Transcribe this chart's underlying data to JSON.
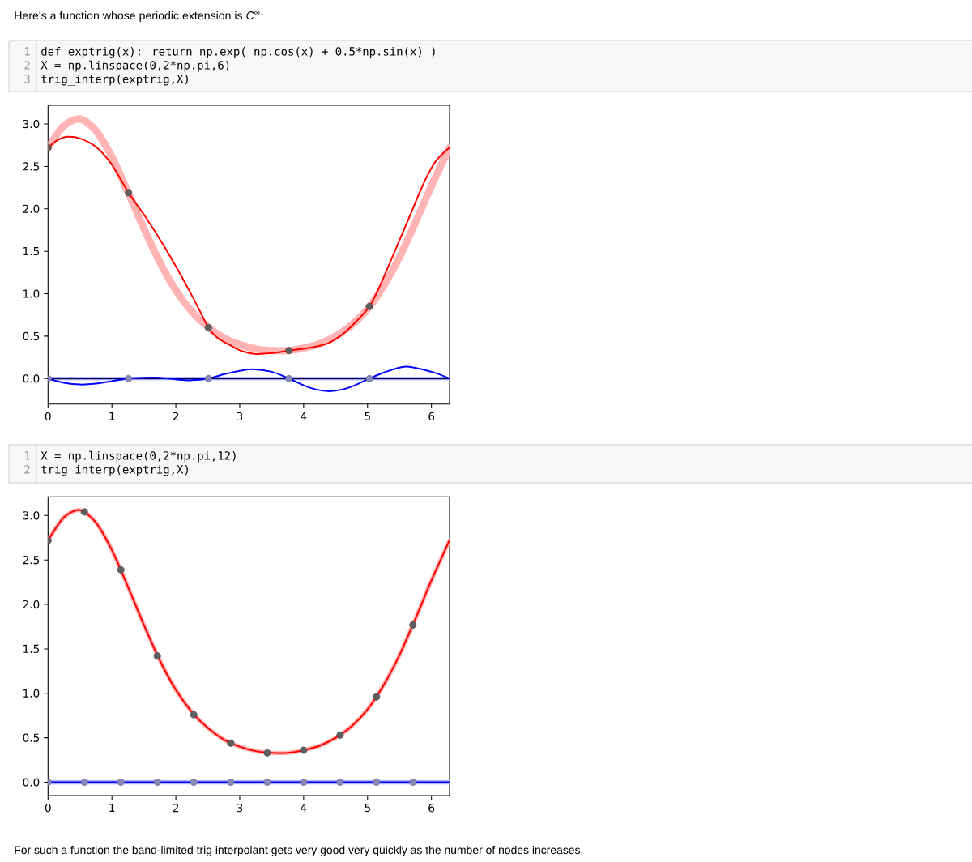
{
  "chart_data": [
    {
      "type": "line",
      "title": "Here's a function whose periodic extension is *C*$^{∞}$:",
      "annotations": [
        "1",
        "def exptrig(x): return np.exp( np.cos(x) + 0.5*np.sin(x) )",
        "2",
        "X = np.linspace(0,2*np.pi,6)",
        "3",
        "trig_interp(exptrig,X)"
      ],
      "x": [
        0,
        0.25,
        0.5,
        0.75,
        1,
        1.25,
        1.5,
        1.75,
        2,
        2.25,
        2.5,
        2.75,
        3,
        3.25,
        3.5,
        3.75,
        4,
        4.25,
        4.5,
        4.75,
        5,
        5.25,
        5.5,
        5.75,
        6,
        6.25,
        6.2832
      ],
      "xlim": [
        0,
        6.2832
      ],
      "xticks": [
        0,
        1,
        2,
        3,
        4,
        5,
        6
      ],
      "ylim": [
        -0.3,
        3.22
      ],
      "yticks": [
        {
          "value": 0,
          "label": "0.0"
        },
        {
          "value": 0.5,
          "label": "0.5"
        },
        {
          "value": 1,
          "label": "1.0"
        },
        {
          "value": 1.5,
          "label": "1.5"
        },
        {
          "value": 2,
          "label": "2.0"
        },
        {
          "value": 2.5,
          "label": "2.5"
        },
        {
          "value": 3,
          "label": "3.0"
        }
      ],
      "ref_lines": [
        {
          "axis": "y",
          "value": 0,
          "color": "#00004d"
        }
      ],
      "series": [
        {
          "color": "#ffb3b3",
          "values": [
            2.72,
            2.98,
            3.06,
            2.92,
            2.61,
            2.2,
            1.77,
            1.37,
            1.04,
            0.79,
            0.61,
            0.48,
            0.4,
            0.35,
            0.33,
            0.33,
            0.36,
            0.41,
            0.5,
            0.63,
            0.82,
            1.09,
            1.43,
            1.84,
            2.27,
            2.67,
            2.72
          ]
        },
        {
          "color": "#b3b3ff",
          "x": [
            0,
            6.2832
          ],
          "values": [
            0,
            0
          ]
        },
        {
          "color": "#ff0000",
          "x": [
            0,
            0.15,
            0.3,
            0.5,
            0.75,
            1,
            1.26,
            1.53,
            1.8,
            2.04,
            2.25,
            2.38,
            2.51,
            2.65,
            2.88,
            3.05,
            3.25,
            3.5,
            3.77,
            4.07,
            4.36,
            4.57,
            4.78,
            5.03,
            5.21,
            5.5,
            5.68,
            5.86,
            6.03,
            6.16,
            6.2832
          ],
          "values": [
            2.72,
            2.81,
            2.85,
            2.83,
            2.73,
            2.52,
            2.19,
            1.9,
            1.58,
            1.27,
            0.98,
            0.79,
            0.6,
            0.48,
            0.38,
            0.32,
            0.29,
            0.3,
            0.33,
            0.36,
            0.41,
            0.5,
            0.64,
            0.85,
            1.12,
            1.63,
            1.95,
            2.27,
            2.52,
            2.64,
            2.72
          ]
        },
        {
          "color": "#0000ff",
          "x": [
            0,
            0.25,
            0.5,
            0.75,
            1,
            1.26,
            1.5,
            1.75,
            2,
            2.25,
            2.51,
            2.75,
            3,
            3.2,
            3.5,
            3.77,
            4,
            4.2,
            4.4,
            4.6,
            4.8,
            5.03,
            5.25,
            5.6,
            6,
            6.2832
          ],
          "values": [
            0,
            -0.05,
            -0.07,
            -0.06,
            -0.03,
            0,
            0.01,
            0.01,
            -0.01,
            -0.02,
            0,
            0.05,
            0.09,
            0.11,
            0.08,
            0,
            -0.08,
            -0.13,
            -0.15,
            -0.13,
            -0.08,
            0,
            0.07,
            0.14,
            0.08,
            0
          ]
        },
        {
          "type": "scatter",
          "marker": "circle",
          "color": "#5e5e5e",
          "x": [
            0,
            1.26,
            2.51,
            3.77,
            5.03
          ],
          "values": [
            2.72,
            2.19,
            0.6,
            0.33,
            0.85
          ]
        },
        {
          "type": "scatter",
          "marker": "circle",
          "color": "#8888b8",
          "x": [
            0,
            1.26,
            2.51,
            3.77,
            5.03
          ],
          "values": [
            0,
            0,
            0,
            0,
            0
          ]
        }
      ]
    },
    {
      "type": "line",
      "annotations": [
        "1",
        "X = np.linspace(0,2*np.pi,12)",
        "2",
        "trig_interp(exptrig,X)",
        "For such a function the band-limited trig interpolant gets very good very quickly as the number of nodes increases."
      ],
      "x": [
        0,
        0.25,
        0.5,
        0.75,
        1,
        1.25,
        1.5,
        1.75,
        2,
        2.25,
        2.5,
        2.75,
        3,
        3.25,
        3.5,
        3.75,
        4,
        4.25,
        4.5,
        4.75,
        5,
        5.25,
        5.5,
        5.75,
        6,
        6.25,
        6.2832
      ],
      "xlim": [
        0,
        6.2832
      ],
      "xticks": [
        0,
        1,
        2,
        3,
        4,
        5,
        6
      ],
      "ylim": [
        -0.15,
        3.21
      ],
      "yticks": [
        {
          "value": 0,
          "label": "0.0"
        },
        {
          "value": 0.5,
          "label": "0.5"
        },
        {
          "value": 1,
          "label": "1.0"
        },
        {
          "value": 1.5,
          "label": "1.5"
        },
        {
          "value": 2,
          "label": "2.0"
        },
        {
          "value": 2.5,
          "label": "2.5"
        },
        {
          "value": 3,
          "label": "3.0"
        }
      ],
      "series": [
        {
          "color": "#ffb3b3",
          "values": [
            2.72,
            2.98,
            3.06,
            2.92,
            2.61,
            2.2,
            1.77,
            1.37,
            1.04,
            0.79,
            0.61,
            0.48,
            0.4,
            0.35,
            0.33,
            0.33,
            0.36,
            0.41,
            0.5,
            0.63,
            0.82,
            1.09,
            1.43,
            1.84,
            2.27,
            2.67,
            2.72
          ]
        },
        {
          "color": "#b3b3ff",
          "x": [
            0,
            6.2832
          ],
          "values": [
            0,
            0
          ]
        },
        {
          "color": "#ff0000",
          "values": [
            2.72,
            2.98,
            3.06,
            2.92,
            2.61,
            2.2,
            1.77,
            1.37,
            1.04,
            0.79,
            0.61,
            0.48,
            0.4,
            0.35,
            0.33,
            0.33,
            0.36,
            0.41,
            0.5,
            0.63,
            0.82,
            1.09,
            1.43,
            1.84,
            2.27,
            2.67,
            2.72
          ]
        },
        {
          "color": "#0000ff",
          "x": [
            0,
            6.2832
          ],
          "values": [
            0,
            0
          ]
        },
        {
          "type": "scatter",
          "marker": "circle",
          "color": "#5e5e5e",
          "x": [
            0,
            0.57,
            1.14,
            1.71,
            2.28,
            2.86,
            3.43,
            4,
            4.57,
            5.14,
            5.71
          ],
          "values": [
            2.72,
            3.04,
            2.39,
            1.42,
            0.76,
            0.44,
            0.33,
            0.36,
            0.53,
            0.96,
            1.77
          ]
        },
        {
          "type": "scatter",
          "marker": "circle",
          "color": "#8888b8",
          "x": [
            0,
            0.57,
            1.14,
            1.71,
            2.28,
            2.86,
            3.43,
            4,
            4.57,
            5.14,
            5.71
          ],
          "values": [
            0,
            0,
            0,
            0,
            0,
            0,
            0,
            0,
            0,
            0,
            0
          ]
        }
      ]
    }
  ]
}
